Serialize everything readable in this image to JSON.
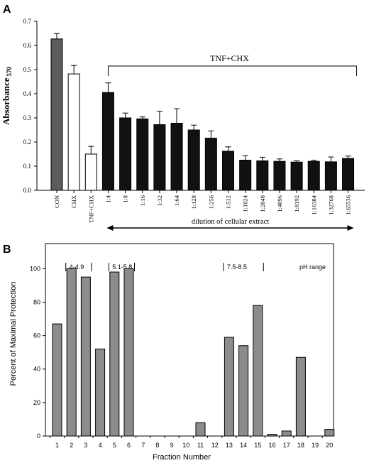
{
  "chart_data": [
    {
      "panel_label": "A",
      "type": "bar",
      "ylabel": "Absorbance",
      "ylabel_subscript": "570",
      "ylim": [
        0,
        0.7
      ],
      "yticks": [
        "0.0",
        "0.1",
        "0.2",
        "0.3",
        "0.4",
        "0.5",
        "0.6",
        "0.7"
      ],
      "categories": [
        "CON",
        "CHX",
        "TNF+CHX",
        "1:4",
        "1:8",
        "1:16",
        "1:32",
        "1:64",
        "1:128",
        "1:256",
        "1:512",
        "1:1024",
        "1:2048",
        "1:4096",
        "1:8192",
        "1:16384",
        "1:32768",
        "1:65536"
      ],
      "values": [
        0.627,
        0.482,
        0.15,
        0.405,
        0.3,
        0.296,
        0.272,
        0.278,
        0.25,
        0.216,
        0.162,
        0.125,
        0.122,
        0.12,
        0.117,
        0.12,
        0.118,
        0.132
      ],
      "errors": [
        0.022,
        0.035,
        0.032,
        0.04,
        0.02,
        0.008,
        0.055,
        0.06,
        0.02,
        0.03,
        0.018,
        0.018,
        0.015,
        0.01,
        0.005,
        0.005,
        0.02,
        0.01
      ],
      "bar_colors": [
        "#5c5c5c",
        "#ffffff",
        "#ffffff",
        "#111111",
        "#111111",
        "#111111",
        "#111111",
        "#111111",
        "#111111",
        "#111111",
        "#111111",
        "#111111",
        "#111111",
        "#111111",
        "#111111",
        "#111111",
        "#111111",
        "#111111"
      ],
      "bracket_label": "TNF+CHX",
      "arrow_label": "dilution of cellular extract"
    },
    {
      "panel_label": "B",
      "type": "bar",
      "xlabel": "Fraction Number",
      "ylabel": "Percent of Maximal Protection",
      "ylim": [
        0,
        115
      ],
      "yticks": [
        "0",
        "20",
        "40",
        "60",
        "80",
        "100"
      ],
      "categories": [
        "1",
        "2",
        "3",
        "4",
        "5",
        "6",
        "7",
        "8",
        "9",
        "10",
        "11",
        "12",
        "13",
        "14",
        "15",
        "16",
        "17",
        "18",
        "19",
        "20"
      ],
      "values": [
        67,
        100,
        95,
        52,
        98,
        100,
        0,
        0,
        0,
        0,
        8,
        0,
        59,
        54,
        78,
        1,
        3,
        47,
        0,
        4
      ],
      "bar_color": "#8c8c8c",
      "ph_ranges": [
        {
          "label": "4-4.9",
          "from": 2,
          "to": 3
        },
        {
          "label": "5.1-5.8",
          "from": 5,
          "to": 6
        },
        {
          "label": "7.5-8.5",
          "from": 13,
          "to": 15
        }
      ],
      "ph_legend": "pH range"
    }
  ]
}
